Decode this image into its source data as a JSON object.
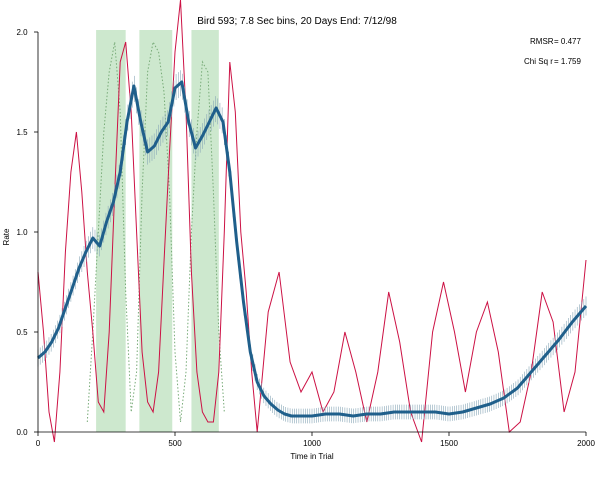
{
  "chart_data": {
    "type": "line",
    "title": "Bird 593; 7.8 Sec bins, 20 Days End: 7/12/98",
    "xlabel": "Time in Trial",
    "ylabel": "Rate",
    "xlim": [
      0,
      2000
    ],
    "ylim": [
      0,
      2.0
    ],
    "xticks": [
      0,
      500,
      1000,
      1500,
      2000
    ],
    "xtick_labels": [
      "0",
      "500",
      "1000",
      "1500",
      "2000"
    ],
    "yticks": [
      0,
      0.5,
      1.0,
      1.5,
      2.0
    ],
    "ytick_labels": [
      "0.0",
      "0.5",
      "1.0",
      "1.5",
      "2.0"
    ],
    "grid": false,
    "stats": [
      {
        "label": "RMSR",
        "value": "= 0.477"
      },
      {
        "label": "Chi Sq r",
        "value": "= 1.759"
      }
    ],
    "shaded_regions": [
      {
        "x0": 212,
        "x1": 320,
        "color": "#c8e6c9"
      },
      {
        "x0": 370,
        "x1": 490,
        "color": "#c8e6c9"
      },
      {
        "x0": 560,
        "x1": 660,
        "color": "#c8e6c9"
      }
    ],
    "series": [
      {
        "color": "#1f5f8b",
        "style": "thick",
        "x": [
          0,
          25,
          50,
          75,
          100,
          125,
          150,
          175,
          200,
          225,
          250,
          275,
          300,
          325,
          350,
          375,
          400,
          425,
          450,
          475,
          500,
          525,
          550,
          575,
          600,
          625,
          650,
          675,
          700,
          725,
          750,
          775,
          800,
          825,
          850,
          875,
          900,
          925,
          950,
          975,
          1000,
          1050,
          1100,
          1150,
          1200,
          1250,
          1300,
          1350,
          1400,
          1450,
          1500,
          1550,
          1600,
          1650,
          1700,
          1750,
          1800,
          1850,
          1900,
          1950,
          2000
        ],
        "y": [
          0.37,
          0.4,
          0.45,
          0.52,
          0.62,
          0.72,
          0.82,
          0.9,
          0.97,
          0.93,
          1.05,
          1.15,
          1.3,
          1.55,
          1.73,
          1.55,
          1.4,
          1.43,
          1.5,
          1.55,
          1.72,
          1.75,
          1.55,
          1.42,
          1.48,
          1.55,
          1.62,
          1.55,
          1.3,
          0.95,
          0.65,
          0.4,
          0.25,
          0.18,
          0.14,
          0.11,
          0.09,
          0.08,
          0.08,
          0.08,
          0.08,
          0.09,
          0.09,
          0.08,
          0.09,
          0.09,
          0.1,
          0.1,
          0.1,
          0.1,
          0.09,
          0.1,
          0.12,
          0.14,
          0.17,
          0.22,
          0.3,
          0.38,
          0.46,
          0.55,
          0.63
        ]
      },
      {
        "color": "#cc1144",
        "style": "thin",
        "x": [
          0,
          20,
          40,
          60,
          80,
          100,
          120,
          140,
          160,
          180,
          200,
          220,
          240,
          260,
          280,
          300,
          320,
          340,
          360,
          380,
          400,
          420,
          440,
          460,
          480,
          500,
          520,
          540,
          560,
          580,
          600,
          620,
          640,
          660,
          680,
          700,
          720,
          740,
          760,
          780,
          800,
          840,
          880,
          920,
          960,
          1000,
          1040,
          1080,
          1120,
          1160,
          1200,
          1240,
          1280,
          1320,
          1360,
          1400,
          1440,
          1480,
          1520,
          1560,
          1600,
          1640,
          1680,
          1720,
          1760,
          1800,
          1840,
          1880,
          1920,
          1960,
          2000
        ],
        "y": [
          0.8,
          0.5,
          0.1,
          -0.05,
          0.3,
          0.9,
          1.3,
          1.5,
          1.2,
          0.8,
          0.5,
          0.15,
          0.1,
          0.5,
          1.2,
          1.85,
          1.95,
          1.6,
          1.0,
          0.4,
          0.15,
          0.1,
          0.3,
          0.85,
          1.4,
          1.9,
          2.2,
          1.6,
          0.8,
          0.3,
          0.1,
          0.05,
          0.05,
          0.3,
          1.0,
          1.85,
          1.6,
          1.0,
          0.7,
          0.3,
          0.0,
          0.6,
          0.8,
          0.35,
          0.2,
          0.3,
          0.1,
          0.2,
          0.5,
          0.3,
          0.05,
          0.3,
          0.7,
          0.45,
          0.1,
          -0.05,
          0.5,
          0.75,
          0.5,
          0.2,
          0.5,
          0.65,
          0.4,
          0.0,
          0.05,
          0.3,
          0.7,
          0.55,
          0.1,
          0.3,
          0.86
        ]
      },
      {
        "color": "#77aa77",
        "style": "dotted",
        "x": [
          180,
          200,
          220,
          240,
          260,
          280,
          300,
          320,
          340,
          360,
          380,
          400,
          420,
          440,
          460,
          480,
          500,
          520,
          540,
          560,
          580,
          600,
          620,
          640,
          660,
          680
        ],
        "y": [
          0.05,
          0.5,
          1.0,
          1.5,
          1.8,
          1.95,
          1.6,
          0.7,
          0.1,
          0.3,
          1.2,
          1.8,
          1.95,
          1.9,
          1.7,
          1.2,
          0.4,
          0.05,
          0.3,
          1.0,
          1.5,
          1.85,
          1.8,
          1.2,
          0.5,
          0.1
        ]
      }
    ]
  }
}
